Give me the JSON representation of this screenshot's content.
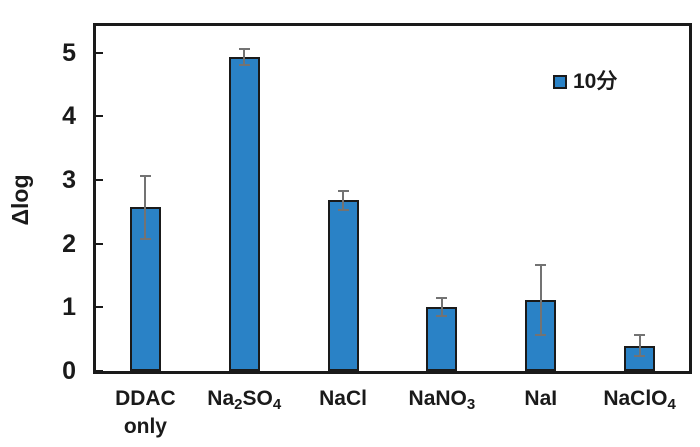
{
  "chart_data": {
    "type": "bar",
    "title": "",
    "xlabel": "",
    "ylabel": "Δlog",
    "ylim": [
      0,
      5.42
    ],
    "yticks": [
      0,
      1,
      2,
      3,
      4,
      5
    ],
    "grid": false,
    "legend": {
      "label": "10分",
      "position": "top-right-inside"
    },
    "categories": [
      {
        "name": "DDAC only",
        "lines": [
          [
            {
              "t": "DDAC"
            }
          ],
          [
            {
              "t": "only"
            }
          ]
        ]
      },
      {
        "name": "Na2SO4",
        "lines": [
          [
            {
              "t": "Na"
            },
            {
              "t": "2",
              "sub": true
            },
            {
              "t": "SO"
            },
            {
              "t": "4",
              "sub": true
            }
          ]
        ]
      },
      {
        "name": "NaCl",
        "lines": [
          [
            {
              "t": "NaCl"
            }
          ]
        ]
      },
      {
        "name": "NaNO3",
        "lines": [
          [
            {
              "t": "NaNO"
            },
            {
              "t": "3",
              "sub": true
            }
          ]
        ]
      },
      {
        "name": "NaI",
        "lines": [
          [
            {
              "t": "NaI"
            }
          ]
        ]
      },
      {
        "name": "NaClO4",
        "lines": [
          [
            {
              "t": "NaClO"
            },
            {
              "t": "4",
              "sub": true
            }
          ]
        ]
      }
    ],
    "series": [
      {
        "name": "10分",
        "values": [
          2.57,
          4.93,
          2.68,
          1.0,
          1.11,
          0.4
        ],
        "errors": [
          0.5,
          0.13,
          0.15,
          0.14,
          0.55,
          0.16
        ]
      }
    ],
    "colors": {
      "bar_fill": "#2A82C6",
      "bar_border": "#1a1a1a",
      "error_bar": "#737373",
      "axis": "#1a1a1a",
      "text": "#1a1a1a"
    }
  }
}
